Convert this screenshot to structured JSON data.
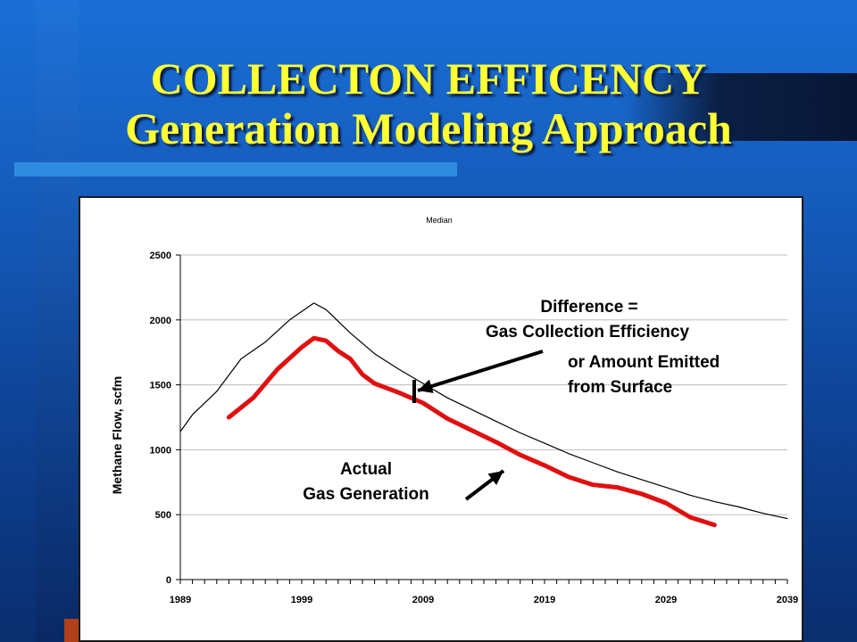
{
  "slide": {
    "title_line1": "COLLECTON EFFICENCY",
    "title_line2": "Generation Modeling Approach"
  },
  "colors": {
    "background": "#1459b8",
    "title": "#ffff33",
    "series_actual": "#e01010",
    "series_model": "#000000"
  },
  "chart_data": {
    "type": "line",
    "title": "Median",
    "xlabel": "",
    "ylabel": "Methane Flow, scfm",
    "xlim": [
      1989,
      2039
    ],
    "ylim": [
      0,
      2500
    ],
    "xticks": [
      1989,
      1999,
      2009,
      2019,
      2029,
      2039
    ],
    "yticks": [
      0,
      500,
      1000,
      1500,
      2000,
      2500
    ],
    "grid": true,
    "legend": "none",
    "series": [
      {
        "color": "#000000",
        "style": "thin",
        "x": [
          1989,
          1990,
          1992,
          1994,
          1996,
          1998,
          2000,
          2001,
          2003,
          2005,
          2007,
          2009,
          2011,
          2013,
          2015,
          2017,
          2019,
          2021,
          2023,
          2025,
          2027,
          2029,
          2031,
          2033,
          2035,
          2037,
          2039
        ],
        "values": [
          1140,
          1270,
          1450,
          1700,
          1830,
          2000,
          2130,
          2080,
          1900,
          1740,
          1620,
          1510,
          1400,
          1310,
          1220,
          1130,
          1050,
          970,
          900,
          830,
          770,
          710,
          650,
          600,
          560,
          510,
          470
        ]
      },
      {
        "color": "#e01010",
        "style": "thick",
        "x": [
          1993,
          1995,
          1997,
          1999,
          2000,
          2001,
          2002,
          2003,
          2004,
          2005,
          2007,
          2009,
          2011,
          2013,
          2015,
          2017,
          2019,
          2021,
          2023,
          2025,
          2027,
          2029,
          2031,
          2033
        ],
        "values": [
          1250,
          1400,
          1620,
          1790,
          1860,
          1840,
          1760,
          1700,
          1580,
          1510,
          1440,
          1360,
          1240,
          1150,
          1060,
          960,
          880,
          790,
          730,
          710,
          660,
          590,
          480,
          420
        ]
      }
    ],
    "annotations": [
      {
        "id": "difference",
        "lines": [
          "Difference =",
          "Gas Collection Efficiency"
        ]
      },
      {
        "id": "emitted",
        "lines": [
          "or Amount Emitted",
          "from Surface"
        ]
      },
      {
        "id": "actual",
        "lines": [
          "Actual",
          "Gas Generation"
        ]
      }
    ]
  }
}
